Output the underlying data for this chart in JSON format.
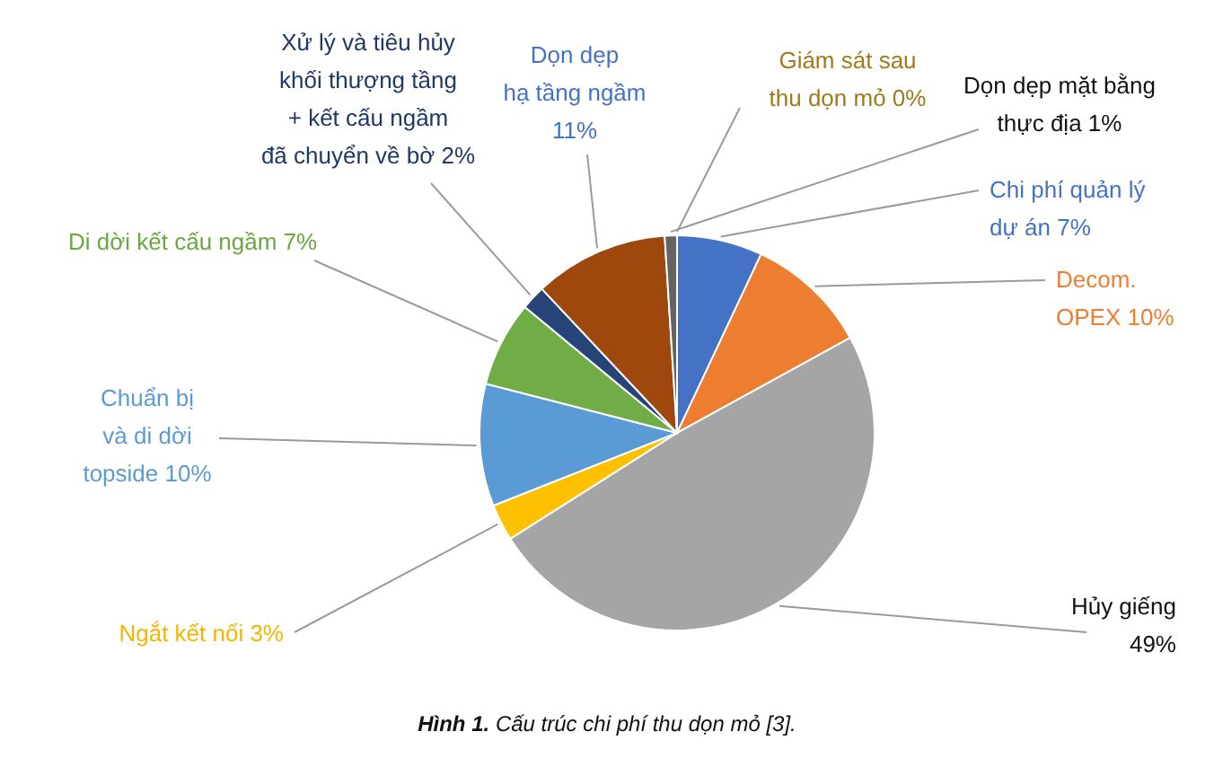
{
  "chart_data": {
    "type": "pie",
    "title": "Hình 1. Cấu trúc chi phí thu dọn mỏ [3].",
    "categories": [
      "Chi phí quản lý dự án",
      "Decom. OPEX",
      "Hủy giếng",
      "Ngắt kết nối",
      "Chuẩn bị và di dời topside",
      "Di dời kết cấu ngầm",
      "Xử lý và tiêu hủy khối thượng tầng + kết cấu ngầm đã chuyển về bờ",
      "Dọn dẹp hạ tầng ngầm",
      "Dọn dẹp mặt bằng thực địa",
      "Giám sát sau thu dọn mỏ"
    ],
    "values": [
      7,
      10,
      49,
      3,
      10,
      7,
      2,
      11,
      1,
      0
    ],
    "colors": [
      "#4472c4",
      "#ed7d31",
      "#a5a5a5",
      "#ffc000",
      "#5b9bd5",
      "#70ad47",
      "#264478",
      "#9e480e",
      "#636363",
      "#997300"
    ],
    "value_labels": [
      "7%",
      "10%",
      "49%",
      "3%",
      "10%",
      "7%",
      "2%",
      "11%",
      "1%",
      "0%"
    ]
  }
}
